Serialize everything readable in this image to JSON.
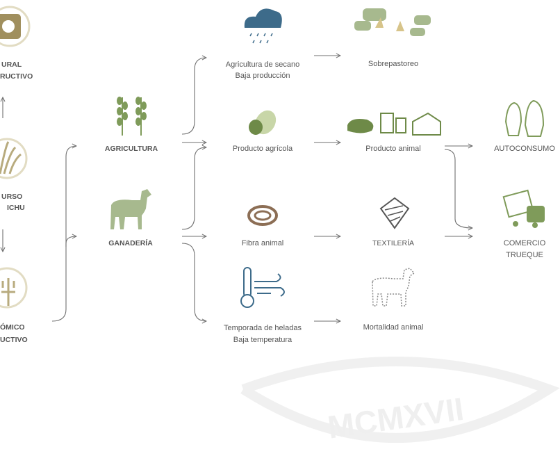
{
  "left_items": [
    [
      "URAL",
      "RUCTIVO"
    ],
    [
      "URSO",
      "ICHU"
    ],
    [
      "ÓMICO",
      "UCTIVO"
    ]
  ],
  "sources": [
    "AGRICULTURA",
    "GANADERÍA"
  ],
  "factors": [
    [
      "Agricultura de secano",
      "Baja producción"
    ],
    [
      "Producto agrícola"
    ],
    [
      "Fibra animal"
    ],
    [
      "Temporada de heladas",
      "Baja temperatura"
    ]
  ],
  "effects": [
    "Sobrepastoreo",
    "Producto animal",
    "TEXTILERÍA",
    "Mortalidad animal"
  ],
  "outcomes": [
    [
      "AUTOCONSUMO"
    ],
    [
      "COMERCIO",
      "TRUEQUE"
    ]
  ],
  "watermark": "MCMXVII"
}
